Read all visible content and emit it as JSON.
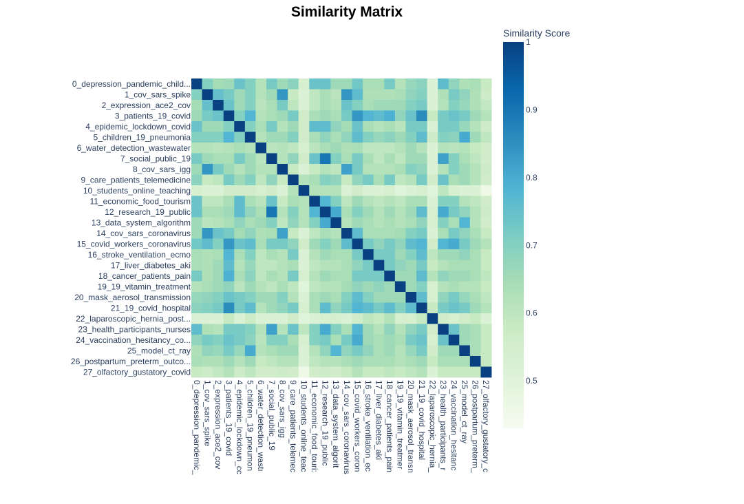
{
  "chart_data": {
    "type": "heatmap",
    "title": "Similarity Matrix",
    "colorbar_title": "Similarity Score",
    "colorbar_ticks": [
      {
        "value": 1.0,
        "label": "1"
      },
      {
        "value": 0.9,
        "label": "0.9"
      },
      {
        "value": 0.8,
        "label": "0.8"
      },
      {
        "value": 0.7,
        "label": "0.7"
      },
      {
        "value": 0.6,
        "label": "0.6"
      },
      {
        "value": 0.5,
        "label": "0.5"
      }
    ],
    "zmin": 0.43,
    "zmax": 1.0,
    "colorscale": [
      "#f7fcf0",
      "#e0f3db",
      "#ccebc5",
      "#a8ddb5",
      "#7bccc4",
      "#4eb3d3",
      "#2b8cbe",
      "#0868ac",
      "#084081"
    ],
    "labels": [
      "0_depression_pandemic_child...",
      "1_cov_sars_spike",
      "2_expression_ace2_cov",
      "3_patients_19_covid",
      "4_epidemic_lockdown_covid",
      "5_children_19_pneumonia",
      "6_water_detection_wastewater",
      "7_social_public_19",
      "8_cov_sars_igg",
      "9_care_patients_telemedicine",
      "10_students_online_teaching",
      "11_economic_food_tourism",
      "12_research_19_public",
      "13_data_system_algorithm",
      "14_cov_sars_coronavirus",
      "15_covid_workers_coronavirus",
      "16_stroke_ventilation_ecmo",
      "17_liver_diabetes_aki",
      "18_cancer_patients_pain",
      "19_19_vitamin_treatment",
      "20_mask_aerosol_transmission",
      "21_19_covid_hospital",
      "22_laparoscopic_hernia_post...",
      "23_health_participants_nurses",
      "24_vaccination_hesitancy_co...",
      "25_model_ct_ray",
      "26_postpartum_preterm_outco...",
      "27_olfactory_gustatory_covid"
    ],
    "x_labels": [
      "0_depression_pandemic_",
      "1_cov_sars_spike",
      "2_expression_ace2_cov",
      "3_patients_19_covid",
      "4_epidemic_lockdown_cc",
      "5_children_19_pneumon",
      "6_water_detection_wastı",
      "7_social_public_19",
      "8_cov_sars_igg",
      "9_care_patients_telemec",
      "10_students_online_teac",
      "11_economic_food_touri:",
      "12_research_19_public",
      "13_data_system_algorit",
      "14_cov_sars_coronavirus",
      "15_covid_workers_coron",
      "16_stroke_ventilation_ec",
      "17_liver_diabetes_aki",
      "18_cancer_patients_pain",
      "19_19_vitamin_treatmer",
      "20_mask_aerosol_transn",
      "21_19_covid_hospital",
      "22_laparoscopic_hernia_",
      "23_health_participants_r",
      "24_vaccination_hesitanc",
      "25_model_ct_ray",
      "26_postpartum_preterm_",
      "27_olfactory_gustatory_c"
    ],
    "matrix": [
      [
        1.0,
        0.7,
        0.65,
        0.66,
        0.74,
        0.7,
        0.62,
        0.72,
        0.66,
        0.69,
        0.54,
        0.74,
        0.74,
        0.66,
        0.66,
        0.73,
        0.64,
        0.64,
        0.72,
        0.62,
        0.67,
        0.69,
        0.52,
        0.76,
        0.68,
        0.63,
        0.64,
        0.58
      ],
      [
        0.7,
        1.0,
        0.75,
        0.72,
        0.66,
        0.7,
        0.62,
        0.66,
        0.84,
        0.58,
        0.52,
        0.6,
        0.64,
        0.61,
        0.84,
        0.76,
        0.63,
        0.63,
        0.63,
        0.64,
        0.68,
        0.7,
        0.52,
        0.63,
        0.72,
        0.68,
        0.63,
        0.57
      ],
      [
        0.65,
        0.75,
        1.0,
        0.74,
        0.66,
        0.7,
        0.61,
        0.64,
        0.72,
        0.6,
        0.52,
        0.6,
        0.64,
        0.62,
        0.74,
        0.7,
        0.64,
        0.66,
        0.66,
        0.66,
        0.7,
        0.72,
        0.52,
        0.62,
        0.7,
        0.67,
        0.63,
        0.59
      ],
      [
        0.66,
        0.72,
        0.74,
        1.0,
        0.7,
        0.78,
        0.62,
        0.64,
        0.66,
        0.72,
        0.56,
        0.64,
        0.66,
        0.64,
        0.72,
        0.84,
        0.78,
        0.76,
        0.79,
        0.68,
        0.74,
        0.86,
        0.58,
        0.72,
        0.74,
        0.72,
        0.66,
        0.62
      ],
      [
        0.74,
        0.66,
        0.66,
        0.7,
        1.0,
        0.7,
        0.64,
        0.72,
        0.62,
        0.66,
        0.56,
        0.76,
        0.76,
        0.68,
        0.65,
        0.74,
        0.64,
        0.62,
        0.64,
        0.61,
        0.72,
        0.72,
        0.52,
        0.72,
        0.72,
        0.67,
        0.62,
        0.57
      ],
      [
        0.7,
        0.7,
        0.7,
        0.78,
        0.7,
        1.0,
        0.62,
        0.66,
        0.66,
        0.7,
        0.56,
        0.64,
        0.68,
        0.64,
        0.68,
        0.76,
        0.7,
        0.67,
        0.69,
        0.66,
        0.7,
        0.76,
        0.57,
        0.7,
        0.69,
        0.8,
        0.66,
        0.6
      ],
      [
        0.62,
        0.62,
        0.61,
        0.62,
        0.64,
        0.62,
        1.0,
        0.61,
        0.62,
        0.6,
        0.54,
        0.61,
        0.64,
        0.66,
        0.63,
        0.64,
        0.6,
        0.6,
        0.6,
        0.62,
        0.66,
        0.62,
        0.52,
        0.62,
        0.61,
        0.62,
        0.58,
        0.56
      ],
      [
        0.72,
        0.66,
        0.64,
        0.64,
        0.72,
        0.66,
        0.61,
        1.0,
        0.62,
        0.68,
        0.56,
        0.74,
        0.9,
        0.7,
        0.64,
        0.72,
        0.64,
        0.6,
        0.64,
        0.6,
        0.66,
        0.66,
        0.52,
        0.82,
        0.7,
        0.64,
        0.6,
        0.56
      ],
      [
        0.66,
        0.84,
        0.72,
        0.66,
        0.62,
        0.66,
        0.62,
        0.62,
        1.0,
        0.58,
        0.52,
        0.58,
        0.62,
        0.6,
        0.82,
        0.72,
        0.62,
        0.62,
        0.62,
        0.64,
        0.7,
        0.68,
        0.52,
        0.62,
        0.7,
        0.66,
        0.62,
        0.57
      ],
      [
        0.69,
        0.58,
        0.6,
        0.72,
        0.66,
        0.7,
        0.6,
        0.68,
        0.58,
        1.0,
        0.62,
        0.64,
        0.7,
        0.68,
        0.58,
        0.68,
        0.72,
        0.64,
        0.72,
        0.6,
        0.62,
        0.72,
        0.56,
        0.74,
        0.64,
        0.66,
        0.62,
        0.56
      ],
      [
        0.54,
        0.52,
        0.52,
        0.56,
        0.56,
        0.56,
        0.54,
        0.56,
        0.52,
        0.62,
        1.0,
        0.62,
        0.62,
        0.62,
        0.52,
        0.56,
        0.52,
        0.52,
        0.54,
        0.5,
        0.52,
        0.54,
        0.5,
        0.6,
        0.54,
        0.52,
        0.52,
        0.46
      ],
      [
        0.74,
        0.6,
        0.6,
        0.64,
        0.76,
        0.64,
        0.61,
        0.74,
        0.58,
        0.64,
        0.62,
        1.0,
        0.78,
        0.7,
        0.6,
        0.66,
        0.62,
        0.6,
        0.62,
        0.6,
        0.64,
        0.64,
        0.52,
        0.7,
        0.7,
        0.62,
        0.6,
        0.56
      ],
      [
        0.74,
        0.64,
        0.64,
        0.66,
        0.76,
        0.68,
        0.64,
        0.9,
        0.62,
        0.7,
        0.62,
        0.78,
        1.0,
        0.8,
        0.64,
        0.7,
        0.66,
        0.62,
        0.66,
        0.62,
        0.66,
        0.76,
        0.54,
        0.8,
        0.72,
        0.68,
        0.62,
        0.57
      ],
      [
        0.66,
        0.61,
        0.62,
        0.64,
        0.68,
        0.64,
        0.66,
        0.7,
        0.6,
        0.68,
        0.62,
        0.7,
        0.8,
        1.0,
        0.62,
        0.66,
        0.64,
        0.62,
        0.64,
        0.62,
        0.64,
        0.68,
        0.54,
        0.7,
        0.64,
        0.78,
        0.62,
        0.56
      ],
      [
        0.66,
        0.84,
        0.74,
        0.72,
        0.65,
        0.68,
        0.63,
        0.64,
        0.82,
        0.58,
        0.52,
        0.6,
        0.64,
        0.62,
        1.0,
        0.76,
        0.64,
        0.64,
        0.64,
        0.65,
        0.7,
        0.72,
        0.52,
        0.64,
        0.72,
        0.68,
        0.64,
        0.58
      ],
      [
        0.73,
        0.76,
        0.7,
        0.84,
        0.74,
        0.76,
        0.64,
        0.72,
        0.72,
        0.68,
        0.56,
        0.66,
        0.7,
        0.66,
        0.76,
        1.0,
        0.72,
        0.68,
        0.72,
        0.68,
        0.76,
        0.78,
        0.56,
        0.78,
        0.8,
        0.72,
        0.66,
        0.62
      ],
      [
        0.64,
        0.63,
        0.64,
        0.78,
        0.64,
        0.7,
        0.6,
        0.64,
        0.62,
        0.72,
        0.52,
        0.62,
        0.66,
        0.64,
        0.64,
        0.72,
        1.0,
        0.72,
        0.72,
        0.66,
        0.7,
        0.76,
        0.6,
        0.66,
        0.66,
        0.68,
        0.64,
        0.58
      ],
      [
        0.64,
        0.63,
        0.66,
        0.76,
        0.62,
        0.67,
        0.6,
        0.6,
        0.62,
        0.64,
        0.52,
        0.6,
        0.62,
        0.62,
        0.64,
        0.68,
        0.72,
        1.0,
        0.72,
        0.68,
        0.66,
        0.72,
        0.58,
        0.62,
        0.64,
        0.64,
        0.64,
        0.58
      ],
      [
        0.72,
        0.63,
        0.66,
        0.79,
        0.64,
        0.69,
        0.6,
        0.64,
        0.62,
        0.72,
        0.54,
        0.62,
        0.66,
        0.64,
        0.64,
        0.72,
        0.72,
        0.72,
        1.0,
        0.66,
        0.66,
        0.76,
        0.62,
        0.68,
        0.66,
        0.66,
        0.64,
        0.6
      ],
      [
        0.62,
        0.64,
        0.66,
        0.68,
        0.61,
        0.66,
        0.62,
        0.6,
        0.64,
        0.6,
        0.5,
        0.6,
        0.62,
        0.62,
        0.65,
        0.68,
        0.66,
        0.68,
        0.66,
        1.0,
        0.66,
        0.7,
        0.54,
        0.62,
        0.64,
        0.62,
        0.62,
        0.58
      ],
      [
        0.67,
        0.68,
        0.7,
        0.74,
        0.72,
        0.7,
        0.66,
        0.66,
        0.7,
        0.62,
        0.52,
        0.64,
        0.66,
        0.64,
        0.7,
        0.76,
        0.7,
        0.66,
        0.66,
        0.66,
        1.0,
        0.76,
        0.54,
        0.68,
        0.72,
        0.67,
        0.64,
        0.6
      ],
      [
        0.69,
        0.7,
        0.72,
        0.86,
        0.72,
        0.76,
        0.62,
        0.66,
        0.68,
        0.72,
        0.54,
        0.64,
        0.76,
        0.68,
        0.72,
        0.78,
        0.76,
        0.72,
        0.76,
        0.7,
        0.76,
        1.0,
        0.58,
        0.72,
        0.74,
        0.72,
        0.66,
        0.62
      ],
      [
        0.52,
        0.52,
        0.52,
        0.58,
        0.52,
        0.57,
        0.52,
        0.52,
        0.52,
        0.56,
        0.5,
        0.52,
        0.54,
        0.54,
        0.52,
        0.56,
        0.6,
        0.58,
        0.62,
        0.54,
        0.54,
        0.58,
        1.0,
        0.56,
        0.54,
        0.56,
        0.58,
        0.52
      ],
      [
        0.76,
        0.63,
        0.62,
        0.72,
        0.72,
        0.7,
        0.62,
        0.82,
        0.62,
        0.74,
        0.6,
        0.7,
        0.8,
        0.7,
        0.64,
        0.78,
        0.66,
        0.62,
        0.68,
        0.62,
        0.68,
        0.72,
        0.56,
        1.0,
        0.74,
        0.66,
        0.64,
        0.58
      ],
      [
        0.68,
        0.72,
        0.7,
        0.74,
        0.72,
        0.69,
        0.61,
        0.7,
        0.7,
        0.64,
        0.54,
        0.7,
        0.72,
        0.64,
        0.72,
        0.8,
        0.66,
        0.64,
        0.66,
        0.64,
        0.72,
        0.74,
        0.54,
        0.74,
        1.0,
        0.66,
        0.64,
        0.58
      ],
      [
        0.63,
        0.68,
        0.67,
        0.72,
        0.67,
        0.8,
        0.62,
        0.64,
        0.66,
        0.66,
        0.52,
        0.62,
        0.68,
        0.78,
        0.68,
        0.72,
        0.68,
        0.64,
        0.66,
        0.62,
        0.67,
        0.72,
        0.56,
        0.66,
        0.66,
        1.0,
        0.64,
        0.58
      ],
      [
        0.64,
        0.63,
        0.63,
        0.66,
        0.62,
        0.66,
        0.58,
        0.6,
        0.62,
        0.62,
        0.52,
        0.6,
        0.62,
        0.62,
        0.64,
        0.66,
        0.64,
        0.64,
        0.64,
        0.62,
        0.64,
        0.66,
        0.58,
        0.64,
        0.64,
        0.64,
        1.0,
        0.58
      ],
      [
        0.58,
        0.57,
        0.59,
        0.62,
        0.57,
        0.6,
        0.56,
        0.56,
        0.57,
        0.56,
        0.46,
        0.56,
        0.57,
        0.56,
        0.58,
        0.62,
        0.58,
        0.58,
        0.6,
        0.58,
        0.6,
        0.62,
        0.52,
        0.58,
        0.58,
        0.58,
        0.58,
        1.0
      ]
    ]
  }
}
